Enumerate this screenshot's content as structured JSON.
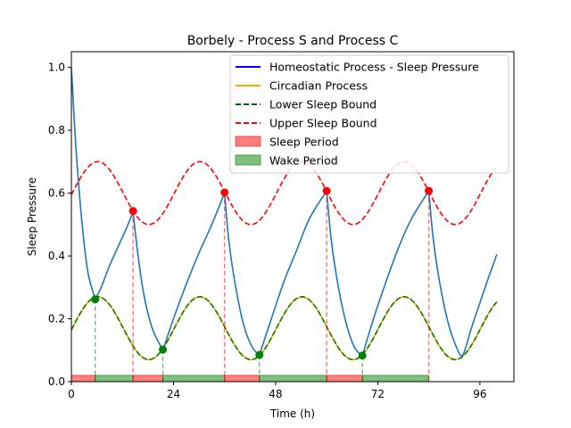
{
  "chart_data": {
    "type": "line",
    "title": "Borbely - Process S and Process C",
    "xlabel": "Time (h)",
    "ylabel": "Sleep Pressure",
    "xlim": [
      0,
      104
    ],
    "ylim": [
      0,
      1.05
    ],
    "x_ticks": [
      0,
      24,
      48,
      72,
      96
    ],
    "y_ticks": [
      0.0,
      0.2,
      0.4,
      0.6,
      0.8,
      1.0
    ],
    "x_tick_labels": [
      "0",
      "24",
      "48",
      "72",
      "96"
    ],
    "y_tick_labels": [
      "0.0",
      "0.2",
      "0.4",
      "0.6",
      "0.8",
      "1.0"
    ],
    "grid": false,
    "legend_position": "top-right",
    "legend": [
      {
        "label": "Homeostatic Process - Sleep Pressure",
        "kind": "line",
        "color": "#0000ff",
        "dash": "solid"
      },
      {
        "label": "Circadian Process",
        "kind": "line",
        "color": "#ffa500",
        "dash": "solid"
      },
      {
        "label": "Lower Sleep Bound",
        "kind": "line",
        "color": "#006400",
        "dash": "dashed"
      },
      {
        "label": "Upper Sleep Bound",
        "kind": "line",
        "color": "#ff0000",
        "dash": "dashed"
      },
      {
        "label": "Sleep Period",
        "kind": "patch",
        "color": "#ff0000"
      },
      {
        "label": "Wake Period",
        "kind": "patch",
        "color": "#008000"
      }
    ],
    "homeostatic_series": {
      "color": "#1f77b4",
      "points": [
        [
          0,
          1.0
        ],
        [
          1,
          0.76
        ],
        [
          2,
          0.58
        ],
        [
          3,
          0.44
        ],
        [
          4,
          0.34
        ],
        [
          5.6,
          0.262
        ],
        [
          7,
          0.3
        ],
        [
          9,
          0.37
        ],
        [
          11,
          0.43
        ],
        [
          13,
          0.49
        ],
        [
          14.5,
          0.54
        ],
        [
          15.5,
          0.42
        ],
        [
          17,
          0.28
        ],
        [
          19,
          0.17
        ],
        [
          21.5,
          0.1
        ],
        [
          24,
          0.2
        ],
        [
          27,
          0.31
        ],
        [
          30,
          0.41
        ],
        [
          33,
          0.5
        ],
        [
          36,
          0.6
        ],
        [
          37,
          0.45
        ],
        [
          38.5,
          0.31
        ],
        [
          40.5,
          0.18
        ],
        [
          42.5,
          0.11
        ],
        [
          44.2,
          0.085
        ],
        [
          47,
          0.2
        ],
        [
          50,
          0.32
        ],
        [
          53,
          0.42
        ],
        [
          56,
          0.52
        ],
        [
          60,
          0.607
        ],
        [
          61,
          0.46
        ],
        [
          62.5,
          0.32
        ],
        [
          64.5,
          0.19
        ],
        [
          66.5,
          0.11
        ],
        [
          68.4,
          0.083
        ],
        [
          71,
          0.2
        ],
        [
          74,
          0.32
        ],
        [
          77,
          0.43
        ],
        [
          80,
          0.52
        ],
        [
          84,
          0.607
        ],
        [
          85,
          0.46
        ],
        [
          86.5,
          0.32
        ],
        [
          88.5,
          0.19
        ],
        [
          90.5,
          0.11
        ],
        [
          92,
          0.085
        ],
        [
          94,
          0.17
        ],
        [
          96,
          0.25
        ],
        [
          98,
          0.33
        ],
        [
          100,
          0.405
        ]
      ]
    },
    "circadian_series": {
      "color": "#ffa500",
      "equation": "0.17 + 0.1*sin(2*pi*(t-0.2)/24)",
      "t_range": [
        0,
        100
      ]
    },
    "lower_bound_series": {
      "color": "#008000",
      "equation": "0.17 + 0.1*sin(2*pi*(t-0.2)/24)",
      "t_range": [
        0,
        100
      ]
    },
    "upper_bound_series": {
      "color": "#ff0000",
      "equation": "0.60 + 0.1*sin(2*pi*(t-0.2)/24)",
      "t_range": [
        0,
        100
      ]
    },
    "sleep_onsets": [
      {
        "x": 14.5,
        "y": 0.543
      },
      {
        "x": 36.0,
        "y": 0.602
      },
      {
        "x": 60.0,
        "y": 0.607
      },
      {
        "x": 84.0,
        "y": 0.607
      }
    ],
    "wake_onsets": [
      {
        "x": 5.6,
        "y": 0.262
      },
      {
        "x": 21.5,
        "y": 0.102
      },
      {
        "x": 44.2,
        "y": 0.085
      },
      {
        "x": 68.4,
        "y": 0.083
      }
    ],
    "periods": [
      {
        "kind": "sleep",
        "start": 0,
        "end": 5.6
      },
      {
        "kind": "wake",
        "start": 5.6,
        "end": 14.5
      },
      {
        "kind": "sleep",
        "start": 14.5,
        "end": 21.5
      },
      {
        "kind": "wake",
        "start": 21.5,
        "end": 36.0
      },
      {
        "kind": "sleep",
        "start": 36.0,
        "end": 44.2
      },
      {
        "kind": "wake",
        "start": 44.2,
        "end": 60.0
      },
      {
        "kind": "sleep",
        "start": 60.0,
        "end": 68.4
      },
      {
        "kind": "wake",
        "start": 68.4,
        "end": 84.0
      }
    ],
    "period_band_height": 0.02
  }
}
